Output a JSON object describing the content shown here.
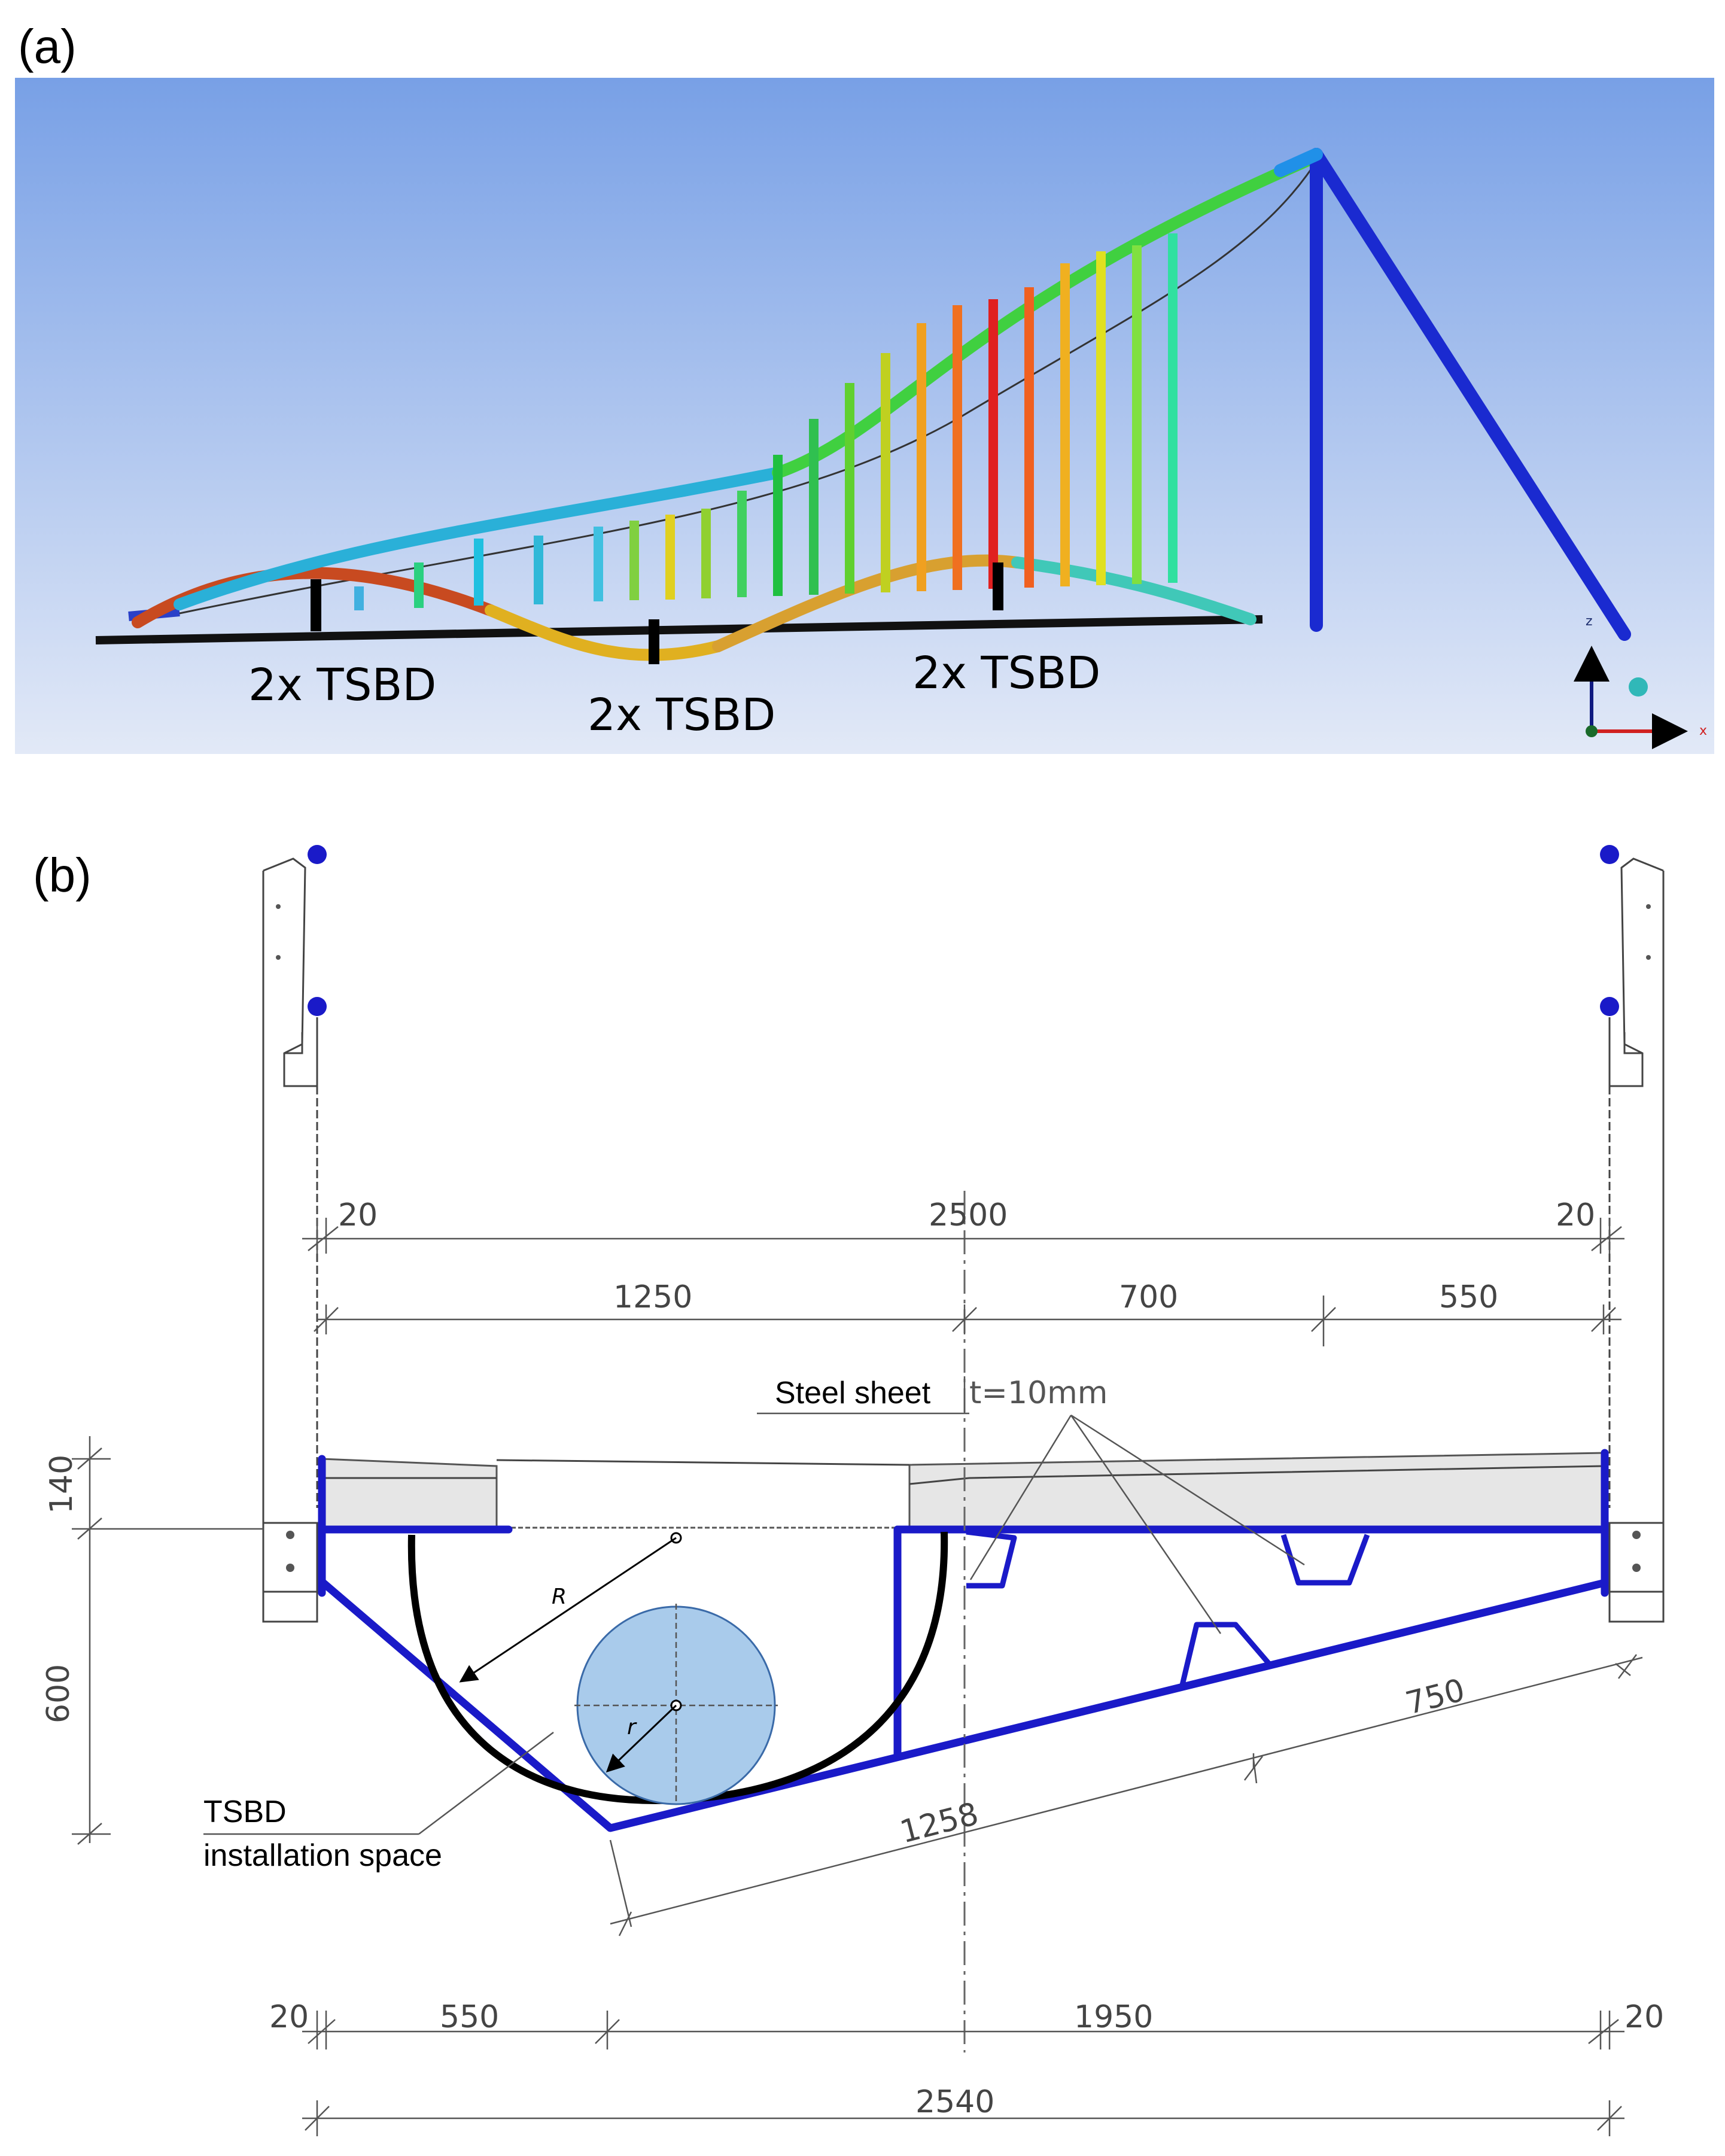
{
  "panel_a": {
    "label": "(a)",
    "tsbd_labels": [
      "2x TSBD",
      "2x TSBD",
      "2x TSBD"
    ],
    "axis_labels": {
      "z": "z",
      "x": "x"
    }
  },
  "panel_b": {
    "label": "(b)",
    "dimensions": {
      "top_left_20": "20",
      "top_total": "2500",
      "top_right_20": "20",
      "seg_1250": "1250",
      "seg_700": "700",
      "seg_550": "550",
      "left_140": "140",
      "left_600": "600",
      "slope_750": "750",
      "slope_1258": "1258",
      "bot_left_20": "20",
      "bot_550": "550",
      "bot_1950": "1950",
      "bot_right_20": "20",
      "bot_total": "2540"
    },
    "radius_labels": {
      "R": "R",
      "r": "r"
    },
    "steel_sheet_label": "Steel sheet",
    "thickness_label": "t=10mm",
    "tsbd_label_line1": "TSBD",
    "tsbd_label_line2": "installation space"
  },
  "colors": {
    "sky_top": "#7aa0e6",
    "sky_bottom": "#dde6f6",
    "structure_blue": "#1a1ac8",
    "damper_fill": "#a9cbeb"
  }
}
